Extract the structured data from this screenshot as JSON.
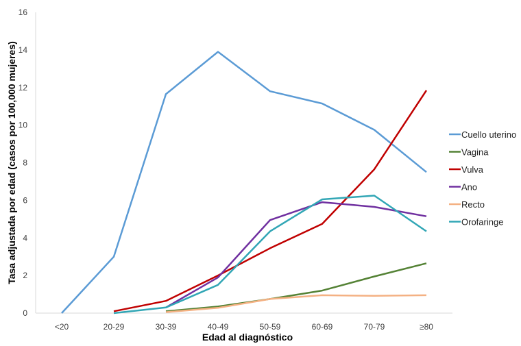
{
  "chart_data": {
    "type": "line",
    "title": "",
    "xlabel": "Edad al diagnóstico",
    "ylabel": "Tasa adjustada por edad (casos por 100,000 mujeres)",
    "categories": [
      "<20",
      "20-29",
      "30-39",
      "40-49",
      "50-59",
      "60-69",
      "70-79",
      "≥80"
    ],
    "ylim": [
      0,
      16
    ],
    "yticks": [
      0,
      2,
      4,
      6,
      8,
      10,
      12,
      14,
      16
    ],
    "grid": false,
    "legend_position": "right",
    "series": [
      {
        "name": "Cuello uterino",
        "color": "#5b9bd5",
        "values": [
          0,
          3.0,
          11.65,
          13.9,
          11.8,
          11.15,
          9.75,
          7.5
        ]
      },
      {
        "name": "Vagina",
        "color": "#548235",
        "values": [
          null,
          null,
          0.1,
          0.35,
          0.75,
          1.2,
          1.95,
          2.65
        ]
      },
      {
        "name": "Vulva",
        "color": "#c00000",
        "values": [
          null,
          0.1,
          0.65,
          2.0,
          3.45,
          4.75,
          7.65,
          11.85
        ]
      },
      {
        "name": "Ano",
        "color": "#7030a0",
        "values": [
          null,
          null,
          0.3,
          1.9,
          4.95,
          5.9,
          5.65,
          5.15
        ]
      },
      {
        "name": "Recto",
        "color": "#f4b183",
        "values": [
          null,
          null,
          0.05,
          0.28,
          0.75,
          0.95,
          0.92,
          0.95
        ]
      },
      {
        "name": "Orofaringe",
        "color": "#31a6b5",
        "values": [
          null,
          0,
          0.3,
          1.5,
          4.35,
          6.05,
          6.25,
          4.35
        ]
      }
    ]
  }
}
